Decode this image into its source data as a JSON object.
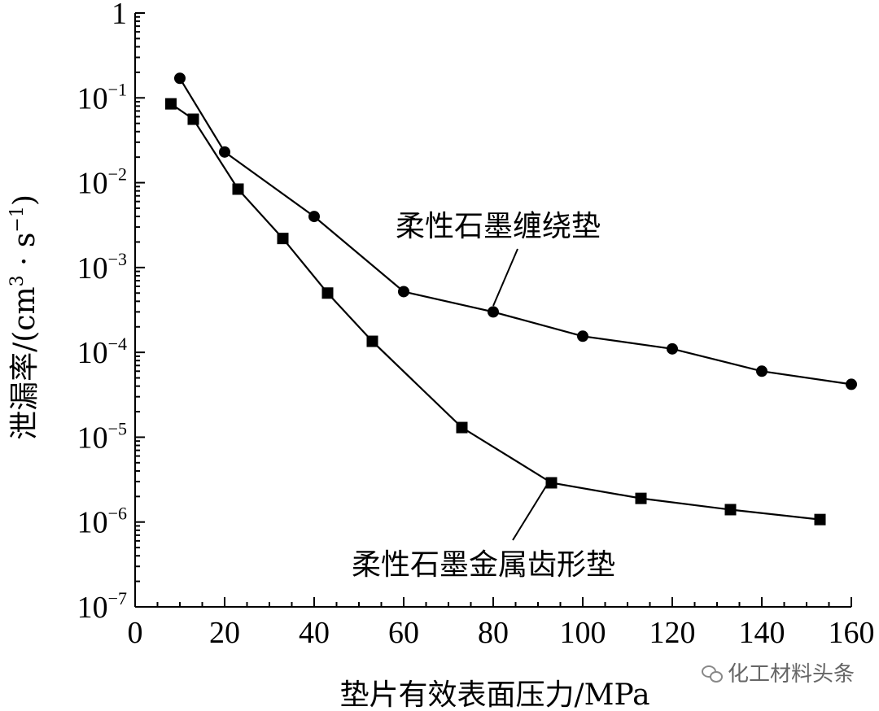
{
  "chart_data": {
    "type": "line",
    "xlabel": "垫片有效表面压力/MPa",
    "ylabel": "泄漏率/(cm³·s⁻¹)",
    "ylabel_parts": {
      "main": "泄漏率/(cm",
      "exp1": "3",
      "mid": " · s",
      "exp2": "−1",
      "end": ")"
    },
    "xlim": [
      0,
      160
    ],
    "ylim": [
      1e-07,
      1
    ],
    "yscale": "log",
    "x_ticks": [
      "0",
      "20",
      "40",
      "60",
      "80",
      "100",
      "120",
      "140",
      "160"
    ],
    "y_ticks": [
      {
        "base": "1",
        "exp": ""
      },
      {
        "base": "10",
        "exp": "−1"
      },
      {
        "base": "10",
        "exp": "−2"
      },
      {
        "base": "10",
        "exp": "−3"
      },
      {
        "base": "10",
        "exp": "−4"
      },
      {
        "base": "10",
        "exp": "−5"
      },
      {
        "base": "10",
        "exp": "−6"
      },
      {
        "base": "10",
        "exp": "−7"
      }
    ],
    "series": [
      {
        "name": "柔性石墨缠绕垫",
        "marker": "circle",
        "x": [
          10,
          20,
          40,
          60,
          80,
          100,
          120,
          140,
          160
        ],
        "y": [
          0.17,
          0.023,
          0.004,
          0.00052,
          0.0003,
          0.000155,
          0.00011,
          6e-05,
          4.2e-05
        ]
      },
      {
        "name": "柔性石墨金属齿形垫",
        "marker": "square",
        "x": [
          8,
          13,
          23,
          33,
          43,
          53,
          73,
          93,
          113,
          133,
          153
        ],
        "y": [
          0.085,
          0.056,
          0.0084,
          0.0022,
          0.0005,
          0.000135,
          1.3e-05,
          2.9e-06,
          1.9e-06,
          1.4e-06,
          1.07e-06
        ]
      }
    ],
    "grid": false,
    "legend": "none"
  },
  "watermark": {
    "text": "化工材料头条",
    "icon": "wechat-icon"
  }
}
